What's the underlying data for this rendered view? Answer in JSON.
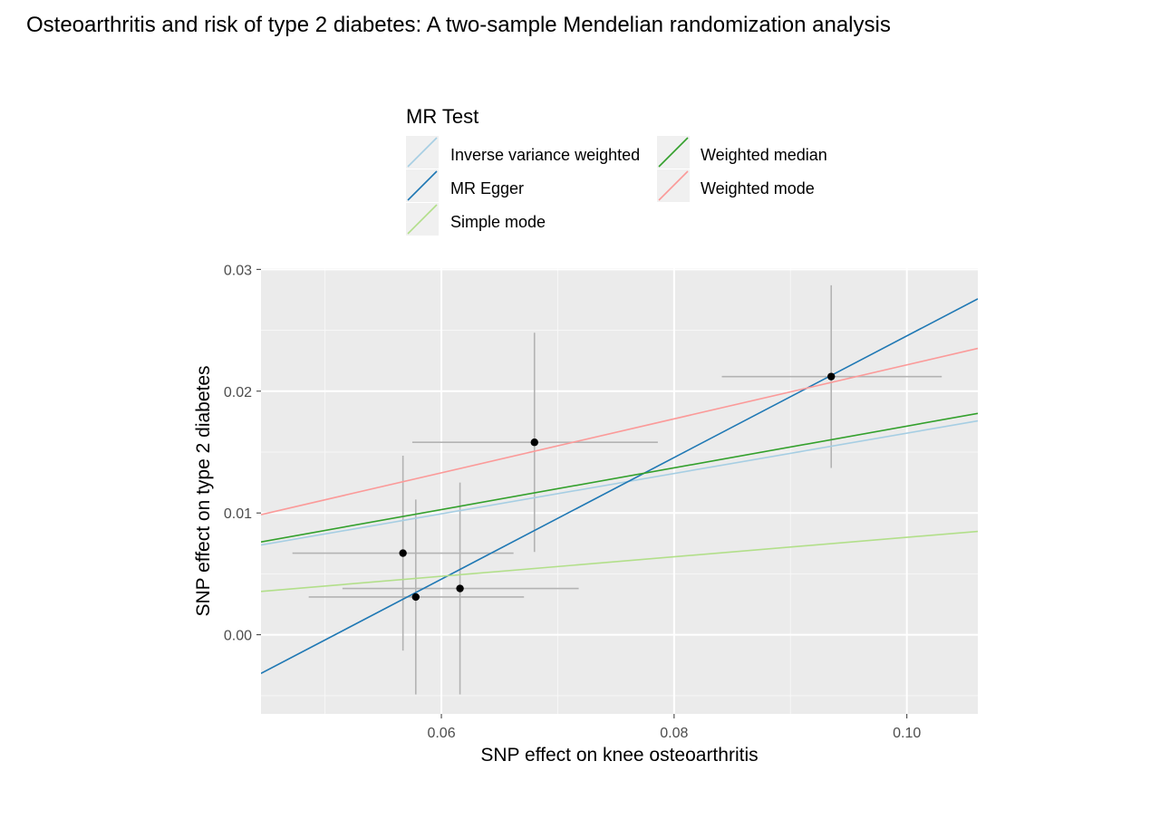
{
  "page": {
    "title": "Osteoarthritis and risk of type 2 diabetes: A two-sample Mendelian randomization analysis"
  },
  "chart_data": {
    "type": "scatter",
    "title": "",
    "xlabel": "SNP effect on knee osteoarthritis",
    "ylabel": "SNP effect on type 2 diabetes",
    "xlim": [
      0.0445,
      0.1061
    ],
    "ylim": [
      -0.0065,
      0.0301
    ],
    "x_ticks": [
      {
        "value": 0.06,
        "label": "0.06"
      },
      {
        "value": 0.08,
        "label": "0.08"
      },
      {
        "value": 0.1,
        "label": "0.10"
      }
    ],
    "y_ticks": [
      {
        "value": 0.0,
        "label": "0.00"
      },
      {
        "value": 0.01,
        "label": "0.01"
      },
      {
        "value": 0.02,
        "label": "0.02"
      },
      {
        "value": 0.03,
        "label": "0.03"
      }
    ],
    "grid": true,
    "legend": {
      "title": "MR Test",
      "placement": "top",
      "entries": [
        {
          "name": "Inverse variance weighted",
          "color": "#a6cee3"
        },
        {
          "name": "Weighted median",
          "color": "#33a02c"
        },
        {
          "name": "MR Egger",
          "color": "#1f78b4"
        },
        {
          "name": "Weighted mode",
          "color": "#fb9a99"
        },
        {
          "name": "Simple mode",
          "color": "#b2df8a"
        }
      ]
    },
    "points": [
      {
        "x": 0.0567,
        "y": 0.0067,
        "x_lo": 0.0472,
        "x_hi": 0.0662,
        "y_lo": -0.0013,
        "y_hi": 0.0147
      },
      {
        "x": 0.0578,
        "y": 0.0031,
        "x_lo": 0.0486,
        "x_hi": 0.0671,
        "y_lo": -0.0049,
        "y_hi": 0.0111
      },
      {
        "x": 0.0616,
        "y": 0.0038,
        "x_lo": 0.0515,
        "x_hi": 0.0718,
        "y_lo": -0.0049,
        "y_hi": 0.0125
      },
      {
        "x": 0.068,
        "y": 0.0158,
        "x_lo": 0.0575,
        "x_hi": 0.0786,
        "y_lo": 0.0068,
        "y_hi": 0.0248
      },
      {
        "x": 0.0935,
        "y": 0.0212,
        "x_lo": 0.0841,
        "x_hi": 0.103,
        "y_lo": 0.0137,
        "y_hi": 0.0287
      }
    ],
    "lines": [
      {
        "name": "Inverse variance weighted",
        "color": "#a6cee3",
        "intercept": 0,
        "slope": 0.1655
      },
      {
        "name": "MR Egger",
        "color": "#1f78b4",
        "intercept": -0.0254,
        "slope": 0.4994
      },
      {
        "name": "Simple mode",
        "color": "#b2df8a",
        "intercept": 0,
        "slope": 0.08
      },
      {
        "name": "Weighted median",
        "color": "#33a02c",
        "intercept": 0,
        "slope": 0.1713
      },
      {
        "name": "Weighted mode",
        "color": "#fb9a99",
        "intercept": 0,
        "slope": 0.2216
      }
    ]
  }
}
